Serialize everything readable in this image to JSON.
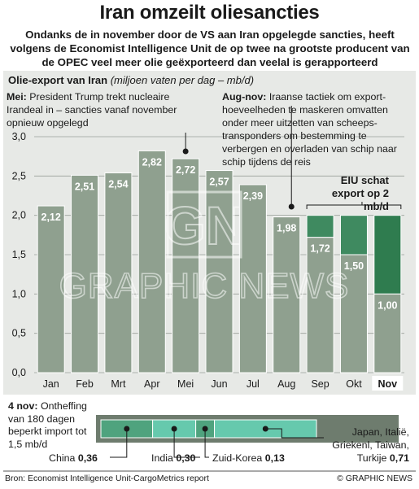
{
  "title": "Iran omzeilt oliesancties",
  "subtitle": "Ondanks de in november door de VS aan Iran opgelegde sancties, heeft volgens de Economist Intelligence Unit de op twee na grootste producent van de OPEC veel meer olie geëxporteerd dan veelal is gerapporteerd",
  "chart_label": "Olie-export van Iran",
  "chart_unit": "(miljoen vaten per dag – mb/d)",
  "annotations": {
    "may_head": "Mei:",
    "may_text": "President Trump trekt nucleaire Irandeal in – sancties vanaf november opnieuw opgelegd",
    "augnov_head": "Aug-nov:",
    "augnov_text": "Iraanse tactiek om export-hoeveelheden te maskeren omvatten onder meer uitzetten van scheeps-transponders om bestemming te verbergen en overladen van schip naar schip tijdens de reis",
    "eiu": "EIU schat export op 2 mb/d"
  },
  "note": {
    "head": "4 nov:",
    "text": "Ontheffing van 180 dagen beperkt import tot 1,5 mb/d"
  },
  "waiver_bar": {
    "segments": [
      {
        "name": "China",
        "value": 0.36,
        "value_text": "0,36",
        "color": "#4fa37e"
      },
      {
        "name": "India",
        "value": 0.3,
        "value_text": "0,30",
        "color": "#66c9ad"
      },
      {
        "name": "Zuid-Korea",
        "value": 0.13,
        "value_text": "0,13",
        "color": "#4fa37e"
      },
      {
        "name": "Japan, Italië, Griekenl, Taiwan, Turkije",
        "value": 0.71,
        "value_text": "0,71",
        "color": "#66c9ad"
      }
    ],
    "other_lines": [
      "Japan, Italië,",
      "Griekenl, Taiwan,",
      "Turkije"
    ]
  },
  "chart_data": {
    "type": "bar",
    "categories": [
      "Jan",
      "Feb",
      "Mrt",
      "Apr",
      "Mei",
      "Jun",
      "Jul",
      "Aug",
      "Sep",
      "Okt",
      "Nov"
    ],
    "values": [
      2.12,
      2.51,
      2.54,
      2.82,
      2.72,
      2.57,
      2.39,
      1.98,
      1.72,
      1.5,
      1.0
    ],
    "value_labels": [
      "2,12",
      "2,51",
      "2,54",
      "2,82",
      "2,72",
      "2,57",
      "2,39",
      "1,98",
      "1,72",
      "1,50",
      "1,00"
    ],
    "eiu_estimate": {
      "months": [
        "Sep",
        "Okt",
        "Nov"
      ],
      "value": 2.0
    },
    "ylim": [
      0,
      3.0
    ],
    "yticks": [
      0,
      0.5,
      1.0,
      1.5,
      2.0,
      2.5,
      3.0
    ],
    "ytick_labels": [
      "0,0",
      "0,5",
      "1,0",
      "1,5",
      "2,0",
      "2,5",
      "3,0"
    ],
    "highlight_category": "Nov",
    "grid": true,
    "colors": {
      "bar": "#8fa08f",
      "bar_plot_bg": "#dadfd9",
      "eiu_gap": "#3f8a60",
      "eiu_gap_nov": "#2f7c4f",
      "panel": "#e7e9e6"
    }
  },
  "footer": {
    "source": "Bron: Economist Intelligence Unit-CargoMetrics report",
    "credit": "© GRAPHIC NEWS"
  },
  "watermark": "GRAPHIC NEWS"
}
